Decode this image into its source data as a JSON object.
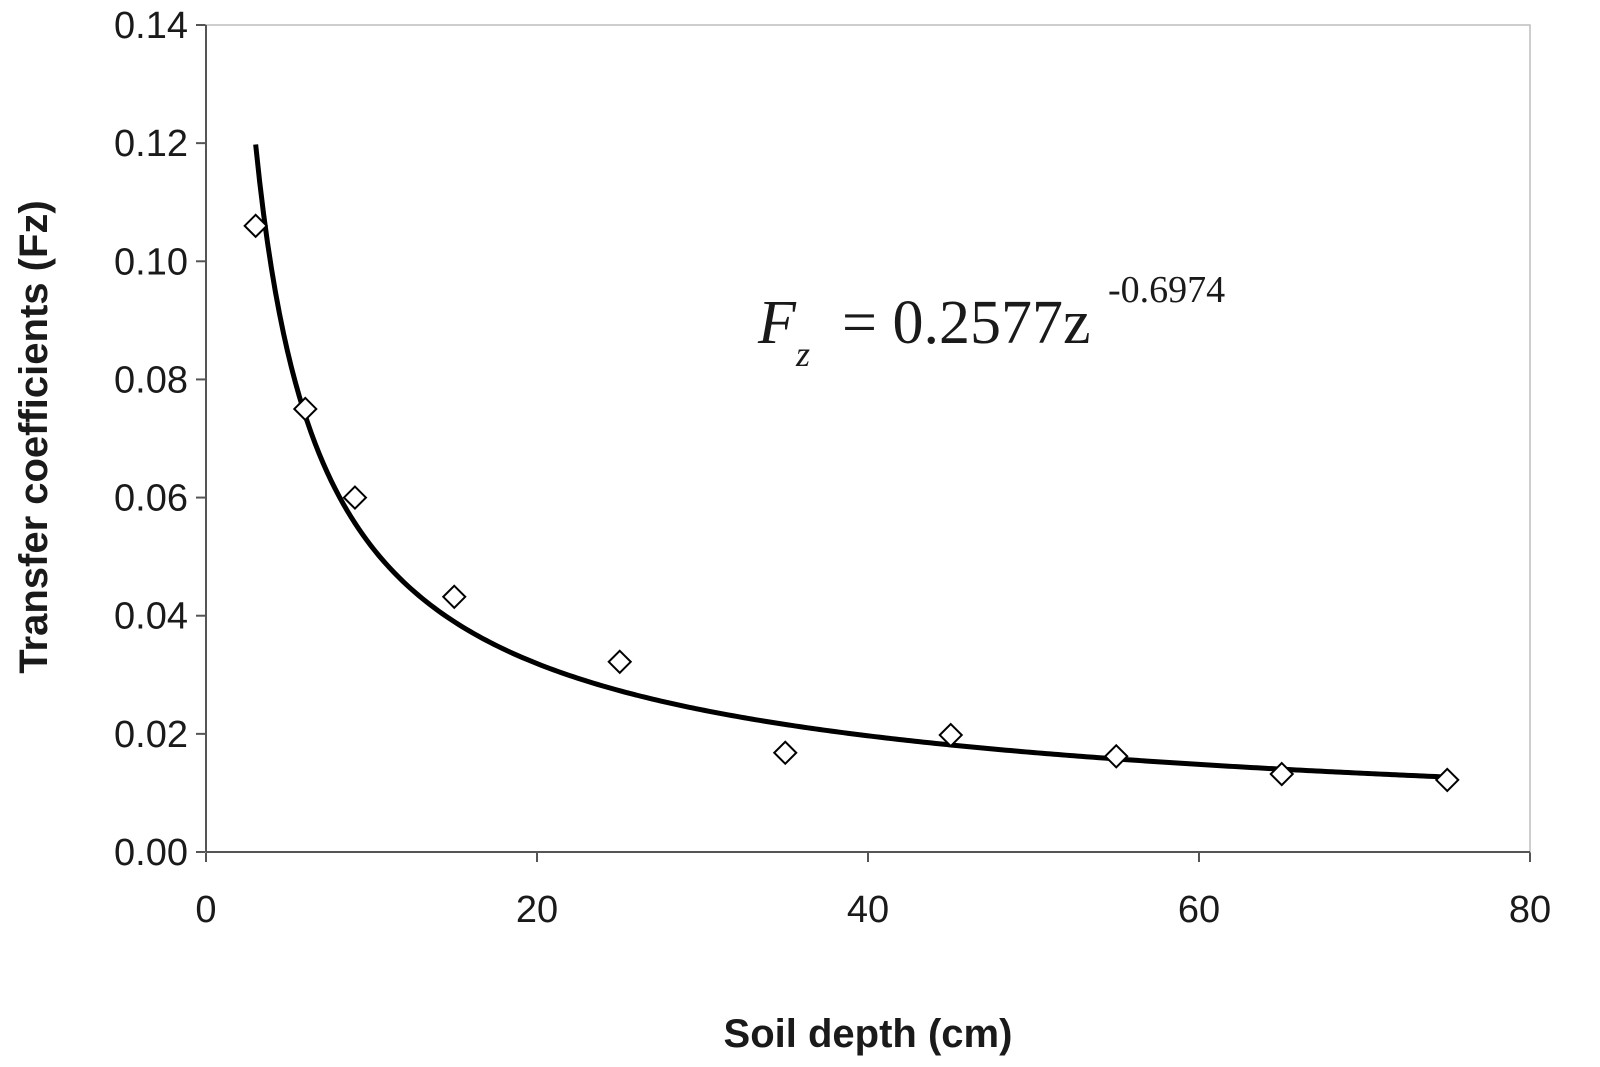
{
  "chart_data": {
    "type": "scatter",
    "title": "",
    "xlabel": "Soil depth (cm)",
    "ylabel": "Transfer coefficients (Fz)",
    "xlim": [
      0,
      80
    ],
    "ylim": [
      0,
      0.14
    ],
    "xticks": [
      0,
      20,
      40,
      60,
      80
    ],
    "xtick_labels": [
      "0",
      "20",
      "40",
      "60",
      "80"
    ],
    "yticks": [
      0,
      0.02,
      0.04,
      0.06,
      0.08,
      0.1,
      0.12,
      0.14
    ],
    "ytick_labels": [
      "0.00",
      "0.02",
      "0.04",
      "0.06",
      "0.08",
      "0.10",
      "0.12",
      "0.14"
    ],
    "grid": false,
    "series": [
      {
        "marker": "diamond-open",
        "x": [
          3,
          6,
          9,
          15,
          25,
          35,
          45,
          55,
          65,
          75
        ],
        "y": [
          0.106,
          0.075,
          0.06,
          0.0432,
          0.0322,
          0.0168,
          0.0198,
          0.0162,
          0.0132,
          0.0122
        ]
      }
    ],
    "fit": {
      "type": "power",
      "coefficient": 0.2577,
      "exponent": -0.6974,
      "x_range": [
        3,
        75
      ]
    },
    "annotation": {
      "lhs": "F",
      "lhs_sub": "z",
      "rhs": "= 0.2577z",
      "rhs_sup": "-0.6974"
    }
  }
}
